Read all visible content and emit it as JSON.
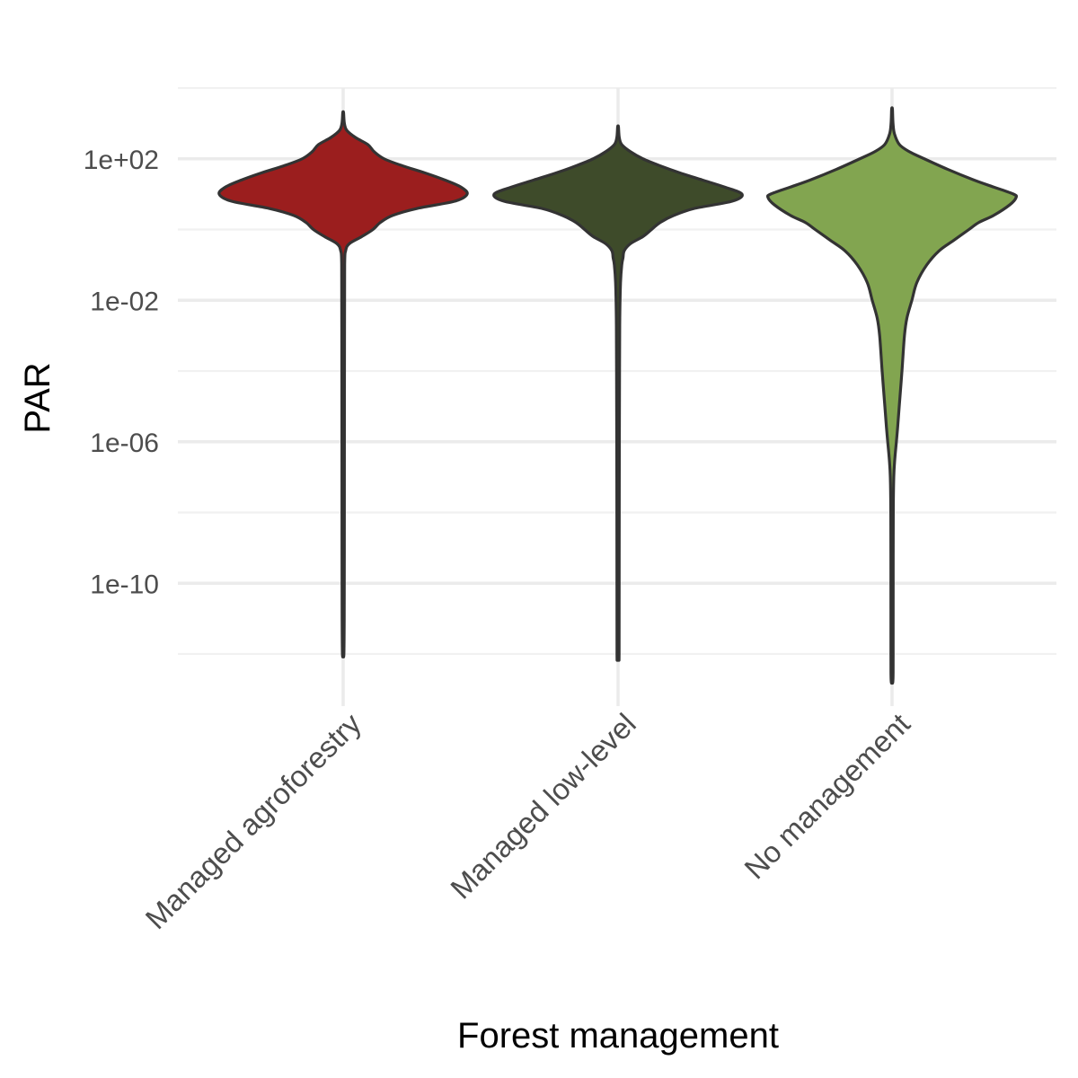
{
  "chart_data": {
    "type": "violin",
    "xlabel": "Forest management",
    "ylabel": "PAR",
    "y_scale": "log10",
    "ylim": [
      1e-14,
      10000.0
    ],
    "y_ticks": [
      {
        "value": 100,
        "label": "1e+02"
      },
      {
        "value": 0.01,
        "label": "1e-02"
      },
      {
        "value": 1e-06,
        "label": "1e-06"
      },
      {
        "value": 1e-10,
        "label": "1e-10"
      }
    ],
    "y_minor_breaks": [
      10000,
      1,
      0.0001,
      1e-08,
      1e-12
    ],
    "grid": true,
    "legend": "none",
    "categories": [
      "Managed agroforestry",
      "Managed low-level",
      "No management"
    ],
    "series": [
      {
        "category": "Managed agroforestry",
        "color": "#9b1e1e",
        "min": 1e-12,
        "max": 2000,
        "mode": 10,
        "density_profile": [
          [
            3.3,
            0.0035
          ],
          [
            3.0,
            0.01
          ],
          [
            2.8,
            0.03
          ],
          [
            2.6,
            0.1
          ],
          [
            2.4,
            0.2
          ],
          [
            2.2,
            0.25
          ],
          [
            2.0,
            0.33
          ],
          [
            1.8,
            0.48
          ],
          [
            1.6,
            0.66
          ],
          [
            1.4,
            0.82
          ],
          [
            1.2,
            0.95
          ],
          [
            1.0,
            1.0
          ],
          [
            0.8,
            0.9
          ],
          [
            0.6,
            0.6
          ],
          [
            0.4,
            0.4
          ],
          [
            0.2,
            0.3
          ],
          [
            0.0,
            0.24
          ],
          [
            -0.2,
            0.15
          ],
          [
            -0.4,
            0.05
          ],
          [
            -0.6,
            0.02
          ],
          [
            -1.0,
            0.012
          ],
          [
            -3.0,
            0.011
          ],
          [
            -6.0,
            0.01
          ],
          [
            -9.0,
            0.0095
          ],
          [
            -11.0,
            0.0085
          ],
          [
            -12.0,
            0.006
          ]
        ]
      },
      {
        "category": "Managed low-level",
        "color": "#3e4b2a",
        "min": 8e-13,
        "max": 800,
        "mode": 10,
        "density_profile": [
          [
            2.9,
            0.0035
          ],
          [
            2.6,
            0.01
          ],
          [
            2.4,
            0.03
          ],
          [
            2.2,
            0.1
          ],
          [
            2.0,
            0.2
          ],
          [
            1.8,
            0.34
          ],
          [
            1.6,
            0.5
          ],
          [
            1.4,
            0.68
          ],
          [
            1.2,
            0.86
          ],
          [
            1.0,
            1.0
          ],
          [
            0.8,
            0.92
          ],
          [
            0.6,
            0.62
          ],
          [
            0.4,
            0.45
          ],
          [
            0.2,
            0.34
          ],
          [
            0.0,
            0.27
          ],
          [
            -0.2,
            0.2
          ],
          [
            -0.4,
            0.1
          ],
          [
            -0.6,
            0.05
          ],
          [
            -0.8,
            0.04
          ],
          [
            -1.0,
            0.03
          ],
          [
            -1.5,
            0.02
          ],
          [
            -2.5,
            0.014
          ],
          [
            -4.0,
            0.012
          ],
          [
            -7.0,
            0.01
          ],
          [
            -10.0,
            0.009
          ],
          [
            -12.0,
            0.0085
          ],
          [
            -12.1,
            0.006
          ]
        ]
      },
      {
        "category": "No management",
        "color": "#82a550",
        "min": 1.5e-13,
        "max": 2500,
        "mode": 10,
        "density_profile": [
          [
            3.4,
            0.0035
          ],
          [
            3.0,
            0.008
          ],
          [
            2.7,
            0.02
          ],
          [
            2.4,
            0.06
          ],
          [
            2.2,
            0.14
          ],
          [
            2.0,
            0.26
          ],
          [
            1.7,
            0.45
          ],
          [
            1.4,
            0.66
          ],
          [
            1.2,
            0.82
          ],
          [
            1.0,
            0.98
          ],
          [
            0.9,
            1.0
          ],
          [
            0.7,
            0.95
          ],
          [
            0.4,
            0.82
          ],
          [
            0.2,
            0.7
          ],
          [
            0.0,
            0.62
          ],
          [
            -0.3,
            0.5
          ],
          [
            -0.6,
            0.38
          ],
          [
            -1.0,
            0.28
          ],
          [
            -1.5,
            0.2
          ],
          [
            -2.0,
            0.16
          ],
          [
            -2.5,
            0.12
          ],
          [
            -3.0,
            0.1
          ],
          [
            -4.0,
            0.08
          ],
          [
            -5.0,
            0.058
          ],
          [
            -5.6,
            0.045
          ],
          [
            -6.0,
            0.035
          ],
          [
            -6.5,
            0.022
          ],
          [
            -7.0,
            0.014
          ],
          [
            -8.0,
            0.01
          ],
          [
            -10.0,
            0.0092
          ],
          [
            -12.0,
            0.009
          ],
          [
            -12.6,
            0.0085
          ],
          [
            -12.8,
            0.006
          ]
        ]
      }
    ]
  }
}
